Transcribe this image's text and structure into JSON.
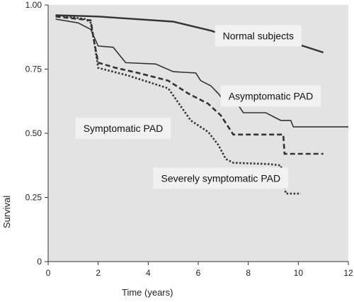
{
  "chart_data": {
    "type": "line",
    "title": "",
    "xlabel": "Time (years)",
    "ylabel": "Survival",
    "xlim": [
      0,
      12
    ],
    "ylim": [
      0,
      1.0
    ],
    "x_ticks": [
      0,
      2,
      4,
      6,
      8,
      10,
      12
    ],
    "x_tick_labels": [
      "0",
      "2",
      "4",
      "6",
      "8",
      "10",
      "12"
    ],
    "y_ticks": [
      0,
      0.25,
      0.5,
      0.75,
      1.0
    ],
    "y_tick_labels": [
      "0",
      "0.25",
      "0.50",
      "0.75",
      "1.00"
    ],
    "grid": false,
    "background": "#e3e3e3",
    "series": [
      {
        "name": "Normal subjects",
        "style": "solid",
        "stroke_width": 2.4,
        "color": "#333333",
        "points": [
          [
            0.3,
            0.96
          ],
          [
            2.0,
            0.955
          ],
          [
            3.5,
            0.945
          ],
          [
            5.0,
            0.935
          ],
          [
            6.5,
            0.9
          ],
          [
            7.3,
            0.875
          ],
          [
            8.5,
            0.865
          ],
          [
            9.5,
            0.855
          ],
          [
            10.2,
            0.84
          ],
          [
            11.0,
            0.815
          ]
        ]
      },
      {
        "name": "Asymptomatic PAD",
        "style": "solid",
        "stroke_width": 1.6,
        "color": "#333333",
        "points": [
          [
            0.3,
            0.945
          ],
          [
            1.2,
            0.93
          ],
          [
            1.7,
            0.905
          ],
          [
            2.0,
            0.84
          ],
          [
            2.6,
            0.835
          ],
          [
            3.1,
            0.775
          ],
          [
            4.3,
            0.77
          ],
          [
            5.0,
            0.74
          ],
          [
            5.9,
            0.735
          ],
          [
            6.1,
            0.705
          ],
          [
            6.5,
            0.685
          ],
          [
            6.8,
            0.655
          ],
          [
            7.0,
            0.63
          ],
          [
            7.5,
            0.625
          ],
          [
            7.8,
            0.58
          ],
          [
            8.7,
            0.58
          ],
          [
            9.0,
            0.565
          ],
          [
            9.3,
            0.55
          ],
          [
            9.7,
            0.55
          ],
          [
            9.8,
            0.525
          ],
          [
            12.0,
            0.525
          ]
        ]
      },
      {
        "name": "Symptomatic PAD",
        "style": "dashed",
        "stroke_width": 2.6,
        "color": "#333333",
        "points": [
          [
            0.3,
            0.955
          ],
          [
            1.7,
            0.94
          ],
          [
            1.85,
            0.85
          ],
          [
            2.0,
            0.775
          ],
          [
            2.7,
            0.755
          ],
          [
            3.6,
            0.735
          ],
          [
            4.8,
            0.705
          ],
          [
            5.6,
            0.655
          ],
          [
            6.4,
            0.615
          ],
          [
            6.9,
            0.57
          ],
          [
            7.2,
            0.525
          ],
          [
            7.4,
            0.495
          ],
          [
            9.4,
            0.495
          ],
          [
            9.45,
            0.42
          ],
          [
            11.0,
            0.42
          ]
        ]
      },
      {
        "name": "Severely symptomatic PAD",
        "style": "dotted",
        "stroke_width": 2.6,
        "color": "#333333",
        "points": [
          [
            0.3,
            0.96
          ],
          [
            1.5,
            0.945
          ],
          [
            1.7,
            0.93
          ],
          [
            1.85,
            0.85
          ],
          [
            2.0,
            0.755
          ],
          [
            3.2,
            0.725
          ],
          [
            4.8,
            0.675
          ],
          [
            5.7,
            0.55
          ],
          [
            6.4,
            0.505
          ],
          [
            6.8,
            0.455
          ],
          [
            7.1,
            0.4
          ],
          [
            7.4,
            0.385
          ],
          [
            8.8,
            0.38
          ],
          [
            9.3,
            0.375
          ],
          [
            9.5,
            0.265
          ],
          [
            10.1,
            0.265
          ]
        ]
      }
    ],
    "annotations": [
      {
        "text": "Normal subjects",
        "x": 8.4,
        "y": 0.88
      },
      {
        "text": "Asymptomatic PAD",
        "x": 8.9,
        "y": 0.645
      },
      {
        "text": "Symptomatic PAD",
        "x": 3.0,
        "y": 0.52
      },
      {
        "text": "Severely symptomatic PAD",
        "x": 6.9,
        "y": 0.325
      }
    ]
  }
}
